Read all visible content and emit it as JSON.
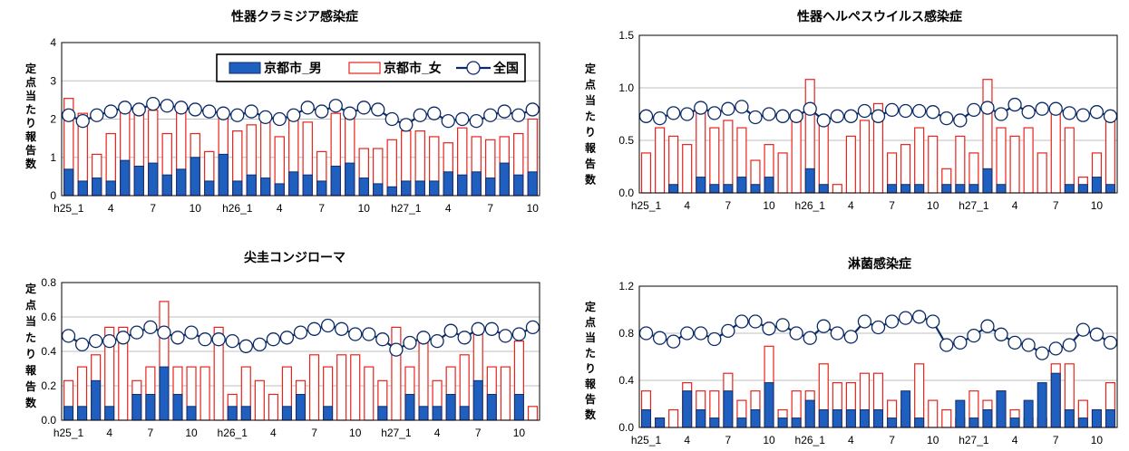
{
  "legend": {
    "male": "京都市_男",
    "female": "京都市_女",
    "national": "全国"
  },
  "ylabel_chars": [
    "定",
    "点",
    "当",
    "た",
    "り",
    "報",
    "告",
    "数"
  ],
  "colors": {
    "male_fill": "#1f5fbf",
    "male_stroke": "#0d2f6b",
    "female_stroke": "#e8231c",
    "national_line": "#0b2a66",
    "grid": "#bfbfbf"
  },
  "chart_data": [
    {
      "type": "bar",
      "title": "性器クラミジア感染症",
      "ylim": [
        0,
        4
      ],
      "yticks": [
        "0",
        "1",
        "2",
        "3",
        "4"
      ],
      "xtick_labels": [
        {
          "i": 0,
          "label": "h25_1"
        },
        {
          "i": 3,
          "label": "4"
        },
        {
          "i": 6,
          "label": "7"
        },
        {
          "i": 9,
          "label": "10"
        },
        {
          "i": 12,
          "label": "h26_1"
        },
        {
          "i": 15,
          "label": "4"
        },
        {
          "i": 18,
          "label": "7"
        },
        {
          "i": 21,
          "label": "10"
        },
        {
          "i": 24,
          "label": "h27_1"
        },
        {
          "i": 27,
          "label": "4"
        },
        {
          "i": 30,
          "label": "7"
        },
        {
          "i": 33,
          "label": "10"
        }
      ],
      "legend_shown": true,
      "series": [
        {
          "name": "京都市_男",
          "values": [
            0.69,
            0.38,
            0.46,
            0.38,
            0.92,
            0.77,
            0.85,
            0.54,
            0.69,
            1.0,
            0.38,
            1.08,
            0.38,
            0.54,
            0.46,
            0.31,
            0.62,
            0.54,
            0.38,
            0.77,
            0.85,
            0.46,
            0.31,
            0.23,
            0.38,
            0.38,
            0.38,
            0.62,
            0.54,
            0.62,
            0.46,
            0.85,
            0.54,
            0.62
          ]
        },
        {
          "name": "京都市_女",
          "values": [
            2.54,
            2.15,
            1.08,
            1.62,
            2.38,
            2.31,
            2.23,
            1.62,
            2.23,
            1.62,
            1.15,
            2.15,
            1.69,
            1.85,
            2.08,
            1.54,
            2.0,
            1.92,
            1.15,
            2.15,
            2.23,
            1.23,
            1.23,
            1.46,
            1.69,
            1.69,
            1.54,
            1.38,
            1.77,
            1.54,
            1.46,
            1.54,
            1.62,
            2.0
          ]
        },
        {
          "name": "全国",
          "values": [
            2.1,
            1.95,
            2.1,
            2.2,
            2.3,
            2.25,
            2.4,
            2.35,
            2.3,
            2.25,
            2.2,
            2.15,
            2.1,
            2.2,
            2.05,
            2.0,
            2.1,
            2.3,
            2.2,
            2.35,
            2.15,
            2.3,
            2.25,
            2.0,
            1.85,
            2.1,
            2.15,
            1.95,
            2.0,
            1.95,
            2.1,
            2.2,
            2.1,
            2.25
          ]
        }
      ]
    },
    {
      "type": "bar",
      "title": "性器ヘルペスウイルス感染症",
      "ylim": [
        0,
        1.5
      ],
      "yticks": [
        "0.0",
        "0.5",
        "1.0",
        "1.5"
      ],
      "xtick_labels": [
        {
          "i": 0,
          "label": "h25_1"
        },
        {
          "i": 3,
          "label": "4"
        },
        {
          "i": 6,
          "label": "7"
        },
        {
          "i": 9,
          "label": "10"
        },
        {
          "i": 12,
          "label": "h26_1"
        },
        {
          "i": 15,
          "label": "4"
        },
        {
          "i": 18,
          "label": "7"
        },
        {
          "i": 21,
          "label": "10"
        },
        {
          "i": 24,
          "label": "h27_1"
        },
        {
          "i": 27,
          "label": "4"
        },
        {
          "i": 30,
          "label": "7"
        },
        {
          "i": 33,
          "label": "10"
        }
      ],
      "legend_shown": false,
      "series": [
        {
          "name": "京都市_男",
          "values": [
            0,
            0,
            0.08,
            0,
            0.15,
            0.08,
            0.08,
            0.15,
            0.08,
            0.15,
            0,
            0,
            0.23,
            0.08,
            0,
            0,
            0,
            0,
            0.08,
            0.08,
            0.08,
            0,
            0.08,
            0.08,
            0.08,
            0.23,
            0.08,
            0,
            0,
            0,
            0,
            0.08,
            0.08,
            0.15,
            0.08
          ]
        },
        {
          "name": "京都市_女",
          "values": [
            0.38,
            0.62,
            0.54,
            0.46,
            0.77,
            0.62,
            0.69,
            0.62,
            0.31,
            0.46,
            0.38,
            0.69,
            1.08,
            0.69,
            0.08,
            0.54,
            0.69,
            0.85,
            0.38,
            0.46,
            0.62,
            0.54,
            0.23,
            0.54,
            0.38,
            1.08,
            0.62,
            0.54,
            0.62,
            0.38,
            0.77,
            0.62,
            0.15,
            0.38,
            0.69
          ]
        },
        {
          "name": "全国",
          "values": [
            0.73,
            0.71,
            0.76,
            0.75,
            0.81,
            0.76,
            0.8,
            0.82,
            0.72,
            0.75,
            0.73,
            0.73,
            0.8,
            0.69,
            0.73,
            0.73,
            0.78,
            0.73,
            0.79,
            0.78,
            0.78,
            0.77,
            0.71,
            0.69,
            0.79,
            0.81,
            0.75,
            0.84,
            0.77,
            0.8,
            0.8,
            0.76,
            0.74,
            0.77,
            0.73
          ]
        }
      ]
    },
    {
      "type": "bar",
      "title": "尖圭コンジローマ",
      "ylim": [
        0,
        0.8
      ],
      "yticks": [
        "0.0",
        "0.2",
        "0.4",
        "0.6",
        "0.8"
      ],
      "xtick_labels": [
        {
          "i": 0,
          "label": "h25_1"
        },
        {
          "i": 3,
          "label": "4"
        },
        {
          "i": 6,
          "label": "7"
        },
        {
          "i": 9,
          "label": "10"
        },
        {
          "i": 12,
          "label": "h26_1"
        },
        {
          "i": 15,
          "label": "4"
        },
        {
          "i": 18,
          "label": "7"
        },
        {
          "i": 21,
          "label": "10"
        },
        {
          "i": 24,
          "label": "h27_1"
        },
        {
          "i": 27,
          "label": "4"
        },
        {
          "i": 30,
          "label": "7"
        },
        {
          "i": 33,
          "label": "10"
        }
      ],
      "legend_shown": false,
      "series": [
        {
          "name": "京都市_男",
          "values": [
            0.08,
            0.08,
            0.23,
            0.08,
            0,
            0.15,
            0.15,
            0.31,
            0.15,
            0.08,
            0,
            0,
            0.08,
            0.08,
            0,
            0,
            0.08,
            0.15,
            0,
            0.08,
            0,
            0,
            0,
            0.08,
            0,
            0.15,
            0.08,
            0.08,
            0.15,
            0.08,
            0.23,
            0.15,
            0,
            0.15,
            0
          ]
        },
        {
          "name": "京都市_女",
          "values": [
            0.23,
            0.31,
            0.38,
            0.54,
            0.54,
            0.23,
            0.31,
            0.69,
            0.31,
            0.31,
            0.31,
            0.54,
            0.15,
            0.31,
            0.23,
            0.15,
            0.31,
            0.23,
            0.38,
            0.31,
            0.38,
            0.38,
            0.31,
            0.23,
            0.54,
            0.31,
            0.46,
            0.23,
            0.31,
            0.38,
            0.54,
            0.31,
            0.31,
            0.46,
            0.08
          ]
        },
        {
          "name": "全国",
          "values": [
            0.49,
            0.44,
            0.46,
            0.46,
            0.48,
            0.51,
            0.54,
            0.51,
            0.48,
            0.51,
            0.47,
            0.47,
            0.46,
            0.43,
            0.44,
            0.47,
            0.48,
            0.51,
            0.53,
            0.55,
            0.53,
            0.5,
            0.5,
            0.47,
            0.41,
            0.45,
            0.48,
            0.46,
            0.52,
            0.48,
            0.53,
            0.53,
            0.49,
            0.5,
            0.54
          ]
        }
      ]
    },
    {
      "type": "bar",
      "title": "淋菌感染症",
      "ylim": [
        0,
        1.2
      ],
      "yticks": [
        "0.0",
        "0.4",
        "0.8",
        "1.2"
      ],
      "xtick_labels": [
        {
          "i": 0,
          "label": "h25_1"
        },
        {
          "i": 3,
          "label": "4"
        },
        {
          "i": 6,
          "label": "7"
        },
        {
          "i": 9,
          "label": "10"
        },
        {
          "i": 12,
          "label": "h26_1"
        },
        {
          "i": 15,
          "label": "4"
        },
        {
          "i": 18,
          "label": "7"
        },
        {
          "i": 21,
          "label": "10"
        },
        {
          "i": 24,
          "label": "h27_1"
        },
        {
          "i": 27,
          "label": "4"
        },
        {
          "i": 30,
          "label": "7"
        },
        {
          "i": 33,
          "label": "10"
        }
      ],
      "legend_shown": false,
      "series": [
        {
          "name": "京都市_男",
          "values": [
            0.15,
            0.08,
            0,
            0.31,
            0.15,
            0.08,
            0.31,
            0.08,
            0.15,
            0.38,
            0.08,
            0.08,
            0.23,
            0.15,
            0.15,
            0.15,
            0.15,
            0.15,
            0.08,
            0.31,
            0.08,
            0,
            0,
            0.23,
            0.08,
            0.15,
            0.31,
            0.08,
            0.23,
            0.38,
            0.46,
            0.15,
            0.08,
            0.15,
            0.15
          ]
        },
        {
          "name": "京都市_女",
          "values": [
            0.31,
            0.08,
            0.15,
            0.38,
            0.31,
            0.31,
            0.46,
            0.23,
            0.31,
            0.69,
            0.15,
            0.31,
            0.31,
            0.54,
            0.38,
            0.38,
            0.46,
            0.46,
            0.23,
            0.15,
            0.54,
            0.23,
            0.15,
            0.08,
            0.31,
            0.23,
            0.31,
            0.15,
            0.08,
            0.08,
            0.54,
            0.54,
            0.23,
            0.15,
            0.38
          ]
        },
        {
          "name": "全国",
          "values": [
            0.8,
            0.76,
            0.73,
            0.8,
            0.8,
            0.75,
            0.82,
            0.9,
            0.9,
            0.84,
            0.87,
            0.8,
            0.76,
            0.86,
            0.8,
            0.77,
            0.9,
            0.85,
            0.9,
            0.93,
            0.94,
            0.9,
            0.7,
            0.72,
            0.78,
            0.86,
            0.79,
            0.72,
            0.7,
            0.63,
            0.67,
            0.7,
            0.83,
            0.79,
            0.72
          ]
        }
      ]
    }
  ]
}
